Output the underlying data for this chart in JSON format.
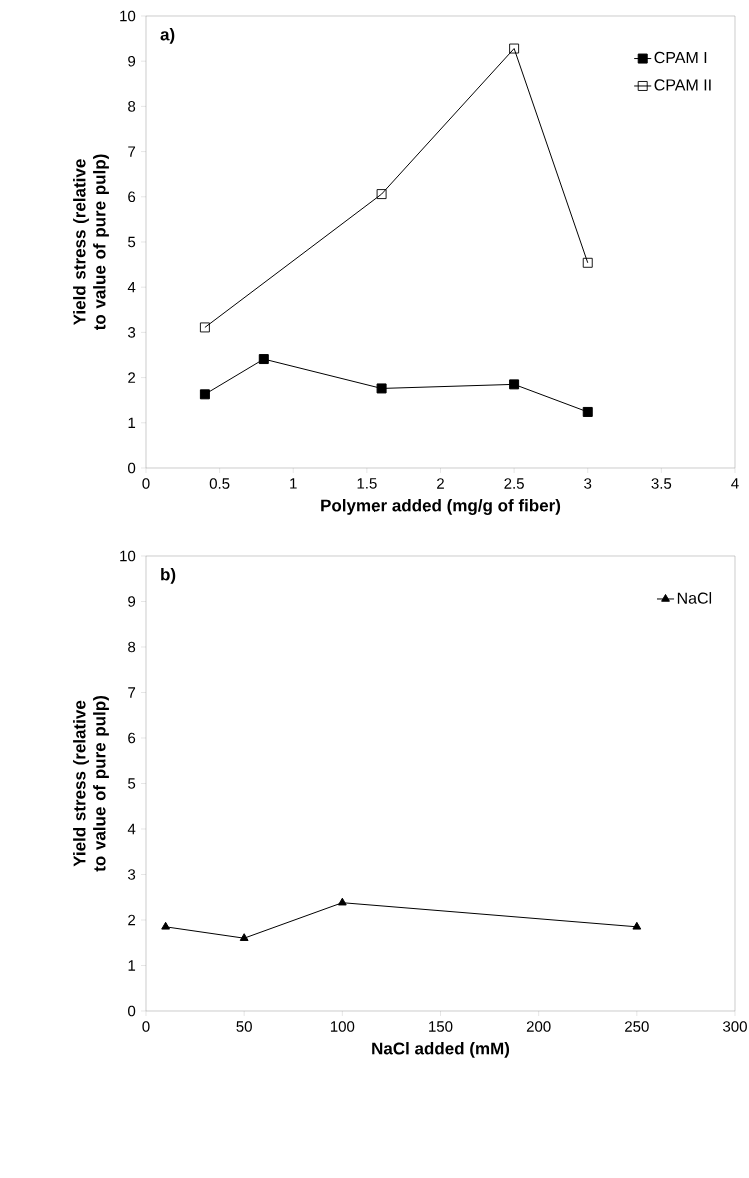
{
  "chart_data": [
    {
      "type": "line",
      "xlabel": "Polymer added (mg/g of fiber)",
      "ylabel": "Yield stress (relative to value of pure pulp)",
      "annotations": [
        "a)"
      ],
      "xlim": [
        0,
        4
      ],
      "xticks": [
        0,
        0.5,
        1,
        1.5,
        2,
        2.5,
        3,
        3.5,
        4
      ],
      "ylim": [
        0,
        10
      ],
      "yticks": [
        0,
        1,
        2,
        3,
        4,
        5,
        6,
        7,
        8,
        9,
        10
      ],
      "legend": "top right",
      "grid": false,
      "series": [
        {
          "name": "CPAM I",
          "color": "#000000",
          "marker": "square",
          "x": [
            0.4,
            0.8,
            1.6,
            2.5,
            3.0
          ],
          "values": [
            1.63,
            2.41,
            1.76,
            1.85,
            1.24
          ]
        },
        {
          "name": "CPAM II",
          "color": "#000000",
          "marker": "square",
          "x": [
            0.4,
            1.6,
            2.5,
            3.0
          ],
          "values": [
            3.11,
            6.06,
            9.28,
            4.54
          ]
        }
      ]
    },
    {
      "type": "line",
      "xlabel": "NaCl added (mM)",
      "ylabel": "Yield stress (relative to value of pure pulp)",
      "annotations": [
        "b)"
      ],
      "xlim": [
        0,
        300
      ],
      "xticks": [
        0,
        50,
        100,
        150,
        200,
        250,
        300
      ],
      "ylim": [
        0,
        10
      ],
      "yticks": [
        0,
        1,
        2,
        3,
        4,
        5,
        6,
        7,
        8,
        9,
        10
      ],
      "legend": "top right",
      "grid": false,
      "series": [
        {
          "name": "NaCl",
          "color": "#000000",
          "marker": "triangle",
          "x": [
            10,
            50,
            100,
            250
          ],
          "values": [
            1.85,
            1.6,
            2.38,
            1.85
          ]
        }
      ]
    }
  ]
}
